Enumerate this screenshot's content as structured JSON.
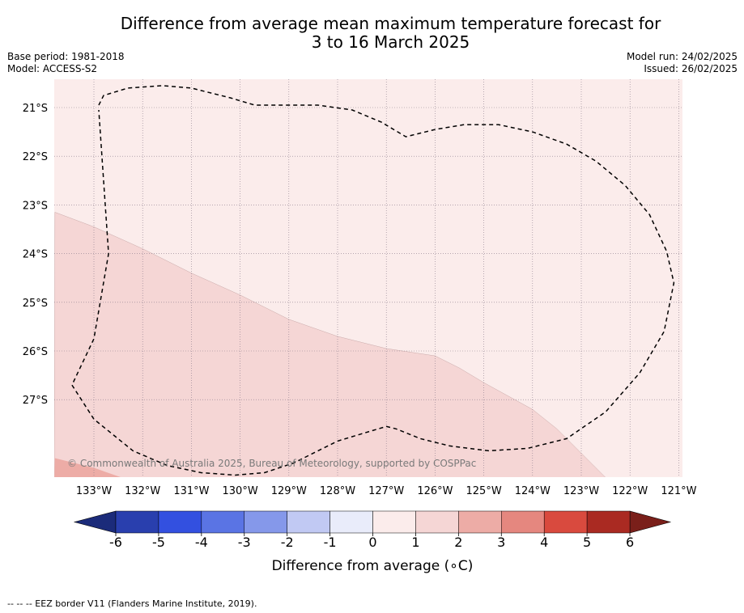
{
  "title": {
    "line1": "Difference from average mean maximum temperature forecast for",
    "line2": "3 to 16 March 2025"
  },
  "meta": {
    "base_period": "Base period: 1981-2018",
    "model": "Model: ACCESS-S2",
    "model_run": "Model run: 24/02/2025",
    "issued": "Issued: 26/02/2025"
  },
  "copyright": "© Commonwealth of Australia 2025, Bureau of Meteorology, supported by COSPPac",
  "footer": "-- -- -- EEZ border V11 (Flanders Marine Institute, 2019).",
  "colors": {
    "anomaly_0_1": "#fbeceb",
    "anomaly_1_2": "#f5d6d5",
    "anomaly_2_3": "#edaca6",
    "eez_border": "#000000",
    "gridline": "#8a7a8a"
  },
  "chart_data": {
    "type": "heatmap",
    "title": "Difference from average mean maximum temperature forecast for 3 to 16 March 2025",
    "x_ticks": [
      {
        "lon": -133,
        "label": "133°W"
      },
      {
        "lon": -132,
        "label": "132°W"
      },
      {
        "lon": -131,
        "label": "131°W"
      },
      {
        "lon": -130,
        "label": "130°W"
      },
      {
        "lon": -129,
        "label": "129°W"
      },
      {
        "lon": -128,
        "label": "128°W"
      },
      {
        "lon": -127,
        "label": "127°W"
      },
      {
        "lon": -126,
        "label": "126°W"
      },
      {
        "lon": -125,
        "label": "125°W"
      },
      {
        "lon": -124,
        "label": "124°W"
      },
      {
        "lon": -123,
        "label": "123°W"
      },
      {
        "lon": -122,
        "label": "122°W"
      },
      {
        "lon": -121,
        "label": "121°W"
      }
    ],
    "y_ticks": [
      {
        "lat": -21,
        "label": "21°S"
      },
      {
        "lat": -22,
        "label": "22°S"
      },
      {
        "lat": -23,
        "label": "23°S"
      },
      {
        "lat": -24,
        "label": "24°S"
      },
      {
        "lat": -25,
        "label": "25°S"
      },
      {
        "lat": -26,
        "label": "26°S"
      },
      {
        "lat": -27,
        "label": "27°S"
      }
    ],
    "xlim": [
      -133.8,
      -120.9
    ],
    "ylim": [
      -28.6,
      -20.4
    ],
    "grid": true,
    "regions": [
      {
        "range": [
          0,
          1
        ],
        "color": "#fbeceb",
        "description_area": "north and east of domain"
      },
      {
        "range": [
          1,
          2
        ],
        "color": "#f5d6d5",
        "boundary": [
          [
            -133.8,
            -23.15
          ],
          [
            -133.0,
            -23.45
          ],
          [
            -132.0,
            -23.9
          ],
          [
            -131.0,
            -24.4
          ],
          [
            -130.0,
            -24.85
          ],
          [
            -129.0,
            -25.35
          ],
          [
            -128.0,
            -25.7
          ],
          [
            -127.0,
            -25.95
          ],
          [
            -126.0,
            -26.1
          ],
          [
            -125.5,
            -26.35
          ],
          [
            -125.0,
            -26.65
          ],
          [
            -124.0,
            -27.2
          ],
          [
            -123.5,
            -27.6
          ],
          [
            -123.0,
            -28.1
          ],
          [
            -122.5,
            -28.6
          ]
        ]
      },
      {
        "range": [
          2,
          3
        ],
        "color": "#edaca6",
        "boundary": [
          [
            -133.8,
            -28.2
          ],
          [
            -133.0,
            -28.4
          ],
          [
            -132.0,
            -28.75
          ]
        ]
      }
    ],
    "eez_border": [
      [
        -132.9,
        -20.95
      ],
      [
        -132.8,
        -20.75
      ],
      [
        -132.3,
        -20.6
      ],
      [
        -131.6,
        -20.55
      ],
      [
        -131.0,
        -20.6
      ],
      [
        -130.2,
        -20.8
      ],
      [
        -129.7,
        -20.95
      ],
      [
        -129.0,
        -20.95
      ],
      [
        -128.4,
        -20.95
      ],
      [
        -127.7,
        -21.05
      ],
      [
        -127.1,
        -21.3
      ],
      [
        -126.6,
        -21.6
      ],
      [
        -126.0,
        -21.45
      ],
      [
        -125.4,
        -21.35
      ],
      [
        -124.7,
        -21.35
      ],
      [
        -124.0,
        -21.5
      ],
      [
        -123.3,
        -21.75
      ],
      [
        -122.7,
        -22.1
      ],
      [
        -122.1,
        -22.6
      ],
      [
        -121.6,
        -23.2
      ],
      [
        -121.25,
        -23.95
      ],
      [
        -121.1,
        -24.6
      ],
      [
        -121.3,
        -25.6
      ],
      [
        -121.8,
        -26.45
      ],
      [
        -122.5,
        -27.25
      ],
      [
        -123.3,
        -27.8
      ],
      [
        -124.1,
        -28.0
      ],
      [
        -124.9,
        -28.05
      ],
      [
        -125.7,
        -27.95
      ],
      [
        -126.3,
        -27.8
      ],
      [
        -126.8,
        -27.6
      ],
      [
        -127.0,
        -27.55
      ],
      [
        -127.5,
        -27.7
      ],
      [
        -128.0,
        -27.85
      ],
      [
        -128.4,
        -28.05
      ],
      [
        -128.9,
        -28.3
      ],
      [
        -129.5,
        -28.5
      ],
      [
        -130.1,
        -28.55
      ],
      [
        -130.8,
        -28.5
      ],
      [
        -131.5,
        -28.35
      ],
      [
        -132.2,
        -28.05
      ],
      [
        -133.0,
        -27.4
      ],
      [
        -133.45,
        -26.7
      ],
      [
        -133.0,
        -25.75
      ],
      [
        -132.7,
        -24.0
      ],
      [
        -132.9,
        -21.05
      ]
    ],
    "colorbar": {
      "label": "Difference from average (∘C)",
      "ticks": [
        "-6",
        "-5",
        "-4",
        "-3",
        "-2",
        "-1",
        "0",
        "1",
        "2",
        "3",
        "4",
        "5",
        "6"
      ],
      "extend": "both",
      "colors": [
        "#293fae",
        "#3350e0",
        "#5a74e4",
        "#8598ea",
        "#c1c9f3",
        "#e9ecfa",
        "#fbeceb",
        "#f5d6d5",
        "#edaca6",
        "#e5877f",
        "#d94a3e",
        "#aa2a22"
      ],
      "min_color": "#1b2b7a",
      "max_color": "#7a1f1a"
    }
  }
}
